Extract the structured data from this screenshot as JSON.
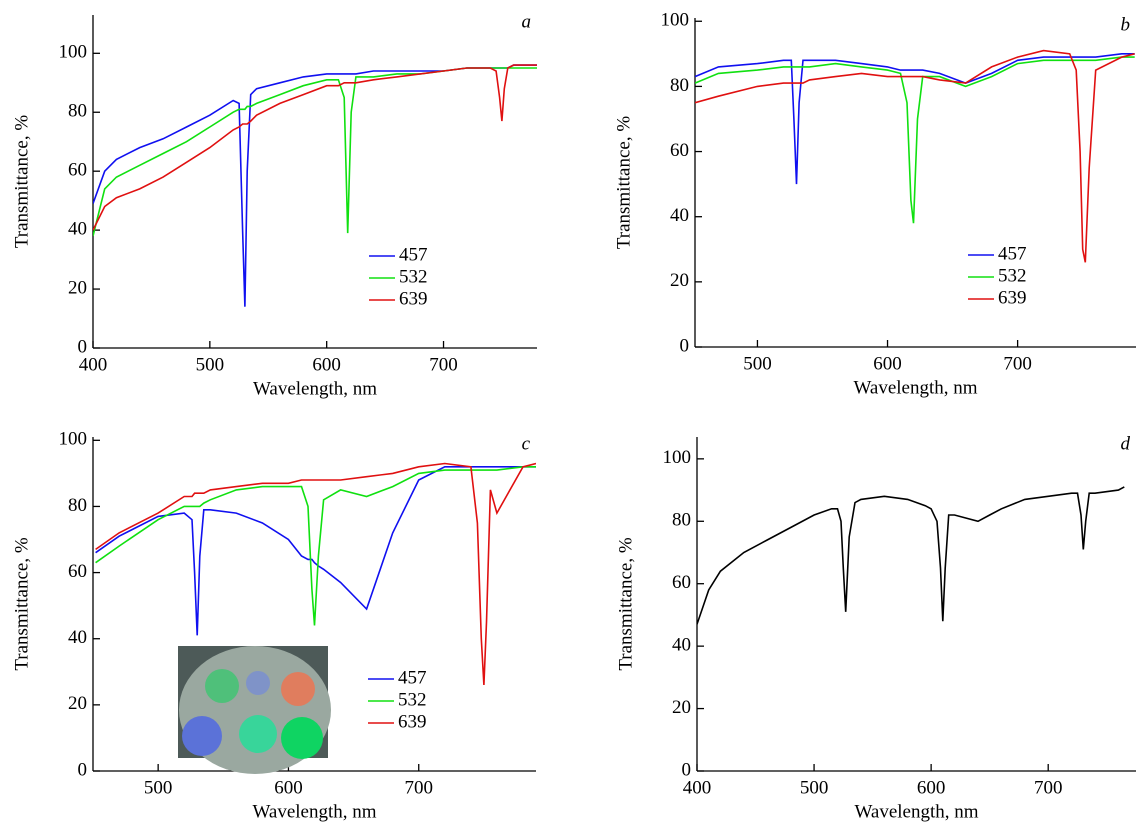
{
  "chart_data": [
    {
      "type": "line",
      "panel_label": "a",
      "xlabel": "Wavelength, nm",
      "ylabel": "Transmittance, %",
      "x": [
        400,
        410,
        420,
        440,
        460,
        480,
        500,
        520,
        525,
        528,
        530,
        532,
        535,
        540,
        560,
        580,
        600,
        610,
        615,
        618,
        621,
        625,
        640,
        660,
        680,
        700,
        720,
        740,
        745,
        748,
        750,
        752,
        755,
        760,
        780
      ],
      "series": [
        {
          "name": "457",
          "color": "#1010f0",
          "values": [
            49,
            60,
            64,
            68,
            71,
            75,
            79,
            84,
            83,
            40,
            14,
            60,
            86,
            88,
            90,
            92,
            93,
            93,
            93,
            93,
            93,
            93,
            94,
            94,
            94,
            94,
            95,
            95,
            95,
            95,
            95,
            95,
            95,
            96,
            96
          ]
        },
        {
          "name": "532",
          "color": "#10e010",
          "values": [
            38,
            54,
            58,
            62,
            66,
            70,
            75,
            80,
            81,
            81,
            81,
            82,
            82,
            83,
            86,
            89,
            91,
            91,
            85,
            39,
            80,
            92,
            92,
            93,
            93,
            94,
            95,
            95,
            95,
            95,
            95,
            95,
            95,
            95,
            95
          ]
        },
        {
          "name": "639",
          "color": "#e01010",
          "values": [
            40,
            48,
            51,
            54,
            58,
            63,
            68,
            74,
            75,
            76,
            76,
            76,
            77,
            79,
            83,
            86,
            89,
            89,
            90,
            90,
            90,
            90,
            91,
            92,
            93,
            94,
            95,
            95,
            94,
            85,
            77,
            88,
            95,
            96,
            96
          ]
        }
      ],
      "xlim": [
        400,
        780
      ],
      "ylim": [
        0,
        113
      ],
      "xticks": [
        400,
        500,
        600,
        700
      ],
      "yticks": [
        0,
        20,
        40,
        60,
        80,
        100
      ],
      "legend": "lower right"
    },
    {
      "type": "line",
      "panel_label": "b",
      "xlabel": "Wavelength, nm",
      "ylabel": "Transmittance, %",
      "x": [
        452,
        470,
        500,
        520,
        526,
        528,
        530,
        532,
        535,
        540,
        560,
        580,
        600,
        610,
        615,
        618,
        620,
        623,
        627,
        640,
        660,
        680,
        700,
        720,
        740,
        745,
        748,
        750,
        752,
        755,
        760,
        780,
        790
      ],
      "series": [
        {
          "name": "457",
          "color": "#1010f0",
          "values": [
            83,
            86,
            87,
            88,
            88,
            70,
            50,
            75,
            88,
            88,
            88,
            87,
            86,
            85,
            85,
            85,
            85,
            85,
            85,
            84,
            81,
            84,
            88,
            89,
            89,
            89,
            89,
            89,
            89,
            89,
            89,
            90,
            90
          ]
        },
        {
          "name": "532",
          "color": "#10e010",
          "values": [
            81,
            84,
            85,
            86,
            86,
            86,
            86,
            86,
            86,
            86,
            87,
            86,
            85,
            84,
            75,
            45,
            38,
            70,
            83,
            83,
            80,
            83,
            87,
            88,
            88,
            88,
            88,
            88,
            88,
            88,
            88,
            89,
            89
          ]
        },
        {
          "name": "639",
          "color": "#e01010",
          "values": [
            75,
            77,
            80,
            81,
            81,
            81,
            81,
            81,
            81,
            82,
            83,
            84,
            83,
            83,
            83,
            83,
            83,
            83,
            83,
            82,
            81,
            86,
            89,
            91,
            90,
            85,
            60,
            30,
            26,
            55,
            85,
            89,
            90
          ]
        }
      ],
      "xlim": [
        452,
        791
      ],
      "ylim": [
        0,
        101
      ],
      "xticks": [
        500,
        600,
        700
      ],
      "yticks": [
        0,
        20,
        40,
        60,
        80,
        100
      ],
      "legend": "lower right"
    },
    {
      "type": "line",
      "panel_label": "c",
      "xlabel": "Wavelength, nm",
      "ylabel": "Transmittance, %",
      "x": [
        452,
        470,
        500,
        520,
        526,
        528,
        530,
        532,
        535,
        540,
        560,
        580,
        600,
        610,
        615,
        618,
        620,
        623,
        627,
        640,
        660,
        680,
        700,
        720,
        740,
        745,
        748,
        750,
        752,
        755,
        760,
        780,
        790
      ],
      "series": [
        {
          "name": "457",
          "color": "#1010f0",
          "values": [
            66,
            71,
            77,
            78,
            76,
            60,
            41,
            65,
            79,
            79,
            78,
            75,
            70,
            65,
            64,
            64,
            63,
            62,
            61,
            57,
            49,
            72,
            88,
            92,
            92,
            92,
            92,
            92,
            92,
            92,
            92,
            92,
            92
          ]
        },
        {
          "name": "532",
          "color": "#10e010",
          "values": [
            63,
            68,
            76,
            80,
            80,
            80,
            80,
            80,
            81,
            82,
            85,
            86,
            86,
            86,
            80,
            55,
            44,
            65,
            82,
            85,
            83,
            86,
            90,
            91,
            91,
            91,
            91,
            91,
            91,
            91,
            91,
            92,
            92
          ]
        },
        {
          "name": "639",
          "color": "#e01010",
          "values": [
            67,
            72,
            78,
            83,
            83,
            84,
            84,
            84,
            84,
            85,
            86,
            87,
            87,
            88,
            88,
            88,
            88,
            88,
            88,
            88,
            89,
            90,
            92,
            93,
            92,
            75,
            40,
            26,
            45,
            85,
            78,
            92,
            93
          ]
        }
      ],
      "xlim": [
        450,
        790
      ],
      "ylim": [
        0,
        101
      ],
      "xticks": [
        500,
        600,
        700
      ],
      "yticks": [
        0,
        20,
        40,
        60,
        80,
        100
      ],
      "legend": "lower right"
    },
    {
      "type": "line",
      "panel_label": "d",
      "xlabel": "Wavelength, nm",
      "ylabel": "Transmittance, %",
      "x": [
        400,
        410,
        420,
        440,
        460,
        480,
        500,
        515,
        520,
        523,
        525,
        527,
        530,
        535,
        540,
        560,
        580,
        595,
        600,
        605,
        608,
        610,
        612,
        615,
        620,
        640,
        650,
        660,
        680,
        700,
        720,
        725,
        728,
        730,
        732,
        735,
        740,
        760,
        765
      ],
      "series": [
        {
          "color": "#000000",
          "values": [
            47,
            58,
            64,
            70,
            74,
            78,
            82,
            84,
            84,
            80,
            65,
            51,
            75,
            86,
            87,
            88,
            87,
            85,
            84,
            80,
            65,
            48,
            65,
            82,
            82,
            80,
            82,
            84,
            87,
            88,
            89,
            89,
            82,
            71,
            80,
            89,
            89,
            90,
            91
          ]
        }
      ],
      "xlim": [
        400,
        775
      ],
      "ylim": [
        0,
        107
      ],
      "xticks": [
        400,
        500,
        600,
        700
      ],
      "yticks": [
        0,
        20,
        40,
        60,
        80,
        100
      ]
    }
  ]
}
